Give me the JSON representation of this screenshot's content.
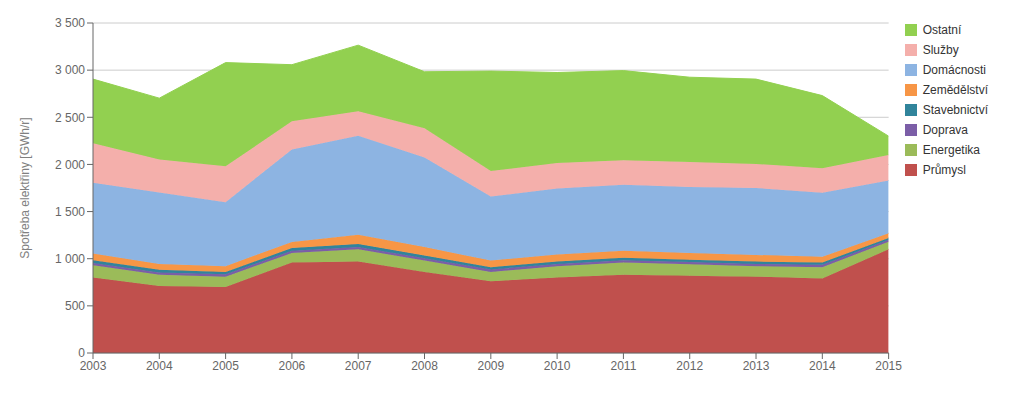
{
  "chart_data": {
    "type": "area",
    "stacked": true,
    "x": [
      2003,
      2004,
      2005,
      2006,
      2007,
      2008,
      2009,
      2010,
      2011,
      2012,
      2013,
      2014,
      2015
    ],
    "series": [
      {
        "name": "Průmysl",
        "color": "#C0504D",
        "values": [
          800,
          710,
          700,
          960,
          970,
          860,
          760,
          800,
          830,
          820,
          810,
          790,
          1100
        ]
      },
      {
        "name": "Energetika",
        "color": "#9BBB59",
        "values": [
          130,
          120,
          110,
          100,
          130,
          120,
          100,
          120,
          130,
          120,
          110,
          120,
          80
        ]
      },
      {
        "name": "Doprava",
        "color": "#7B5EA7",
        "values": [
          25,
          25,
          25,
          25,
          25,
          25,
          25,
          25,
          25,
          25,
          25,
          25,
          20
        ]
      },
      {
        "name": "Stavebnictví",
        "color": "#31849B",
        "values": [
          30,
          28,
          25,
          28,
          30,
          28,
          25,
          25,
          25,
          25,
          25,
          25,
          20
        ]
      },
      {
        "name": "Zemědělství",
        "color": "#F79646",
        "values": [
          70,
          60,
          60,
          65,
          100,
          90,
          70,
          75,
          75,
          70,
          70,
          60,
          50
        ]
      },
      {
        "name": "Domácnosti",
        "color": "#8DB4E2",
        "values": [
          750,
          760,
          680,
          980,
          1050,
          950,
          680,
          700,
          700,
          700,
          710,
          680,
          560
        ]
      },
      {
        "name": "Služby",
        "color": "#F4AFAB",
        "values": [
          420,
          350,
          380,
          300,
          260,
          310,
          270,
          270,
          260,
          265,
          255,
          260,
          270
        ]
      },
      {
        "name": "Ostatní",
        "color": "#92D050",
        "values": [
          680,
          650,
          1100,
          600,
          700,
          600,
          1060,
          960,
          950,
          900,
          900,
          770,
          200
        ]
      }
    ],
    "ylabel": "Spotřeba elektřiny [GWh/r]",
    "xlim": [
      2003,
      2015
    ],
    "xticks": [
      2003,
      2004,
      2005,
      2006,
      2007,
      2008,
      2009,
      2010,
      2011,
      2012,
      2013,
      2014,
      2015
    ],
    "ylim": [
      0,
      3500
    ],
    "yticks": [
      0,
      500,
      {
        "value": 1000,
        "label": "1 000"
      },
      {
        "value": 1500,
        "label": "1 500"
      },
      {
        "value": 2000,
        "label": "2 000"
      },
      {
        "value": 2500,
        "label": "2 500"
      },
      {
        "value": 3000,
        "label": "3 000"
      },
      {
        "value": 3500,
        "label": "3 500"
      }
    ],
    "grid": true,
    "legend": "upper right"
  }
}
